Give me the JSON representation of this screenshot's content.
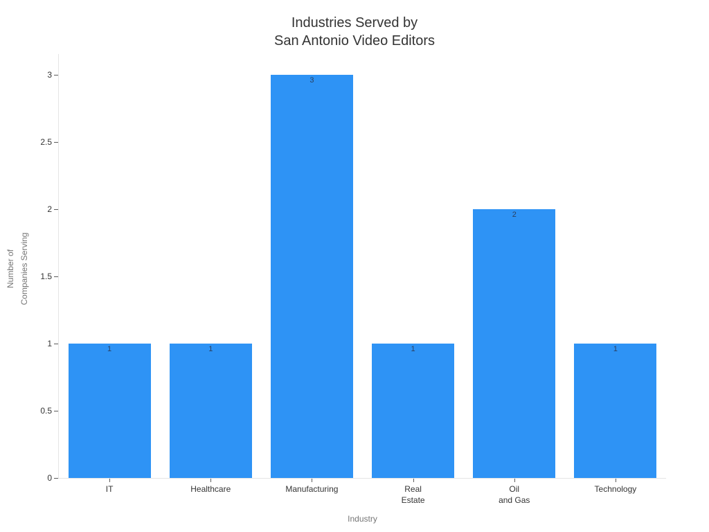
{
  "chart_data": {
    "type": "bar",
    "title": "Industries Served by\nSan Antonio Video Editors",
    "xlabel": "Industry",
    "ylabel": "Number of\nCompanies Serving",
    "categories": [
      "IT",
      "Healthcare",
      "Manufacturing",
      "Real\nEstate",
      "Oil\nand Gas",
      "Technology"
    ],
    "values": [
      1,
      1,
      3,
      1,
      2,
      1
    ],
    "bar_value_labels": [
      "1",
      "1",
      "3",
      "1",
      "2",
      "1"
    ],
    "ylim": [
      0,
      3
    ],
    "yticks": [
      0,
      0.5,
      1,
      1.5,
      2,
      2.5,
      3
    ],
    "ytick_labels": [
      "0",
      "0.5",
      "1",
      "1.5",
      "2",
      "2.5",
      "3"
    ],
    "grid": false,
    "legend": "none"
  },
  "colors": {
    "background": "#ffffff",
    "bar": "#2E93F5",
    "bar_value_label": "#2a3f5f",
    "title": "#333333",
    "tick_label": "#333333",
    "axis_title": "#757575",
    "axis_line": "#e5e5e5",
    "tick_mark": "#5a5a5a"
  }
}
